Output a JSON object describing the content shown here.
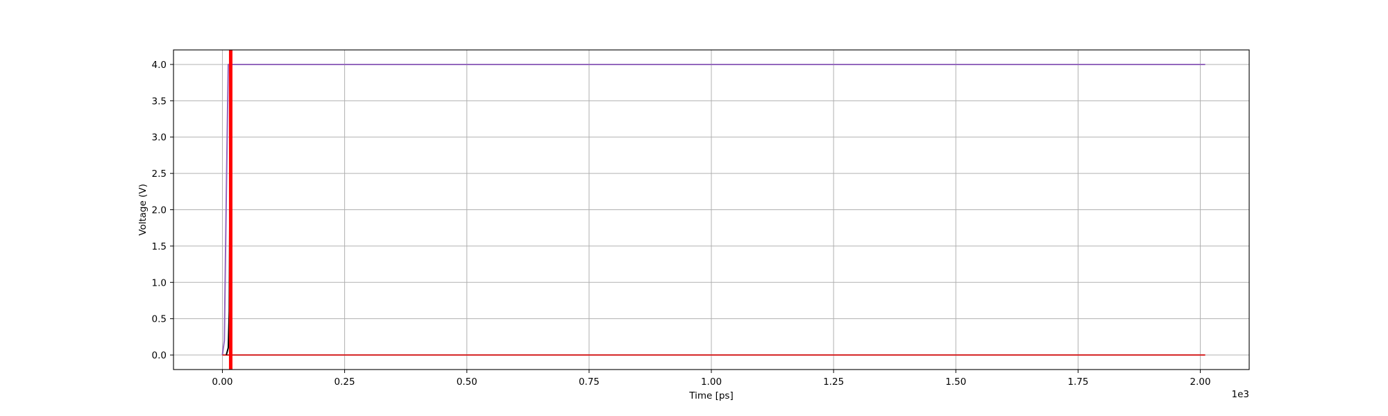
{
  "chart_data": {
    "type": "line",
    "title": "",
    "xlabel": "Time [ps]",
    "ylabel": "Voltage (V)",
    "x_offset_text": "1e3",
    "xlim": [
      -100,
      2100
    ],
    "ylim": [
      -0.2,
      4.2
    ],
    "x_ticks": [
      0,
      250,
      500,
      750,
      1000,
      1250,
      1500,
      1750,
      2000
    ],
    "x_tick_labels": [
      "0.00",
      "0.25",
      "0.50",
      "0.75",
      "1.00",
      "1.25",
      "1.50",
      "1.75",
      "2.00"
    ],
    "y_ticks": [
      0,
      0.5,
      1,
      1.5,
      2,
      2.5,
      3,
      3.5,
      4
    ],
    "y_tick_labels": [
      "0.0",
      "0.5",
      "1.0",
      "1.5",
      "2.0",
      "2.5",
      "3.0",
      "3.5",
      "4.0"
    ],
    "grid": true,
    "legend": "none",
    "series": [
      {
        "color": "#9467bd",
        "line_width": "normal",
        "x": [
          0,
          4,
          8,
          12,
          2010
        ],
        "y": [
          0,
          0.2,
          2.2,
          4.0,
          4.0
        ]
      },
      {
        "color": "#d62728",
        "line_width": "normal",
        "x": [
          0,
          2010
        ],
        "y": [
          0,
          0
        ]
      },
      {
        "color": "#000000",
        "line_width": "normal",
        "x": [
          8,
          12,
          14,
          15,
          16,
          17
        ],
        "y": [
          0,
          0.1,
          0.6,
          1.8,
          3.2,
          4.0
        ]
      },
      {
        "color": "#ff0000",
        "line_width": "thick",
        "x": [
          17,
          17
        ],
        "y": [
          -0.2,
          4.2
        ]
      }
    ]
  }
}
